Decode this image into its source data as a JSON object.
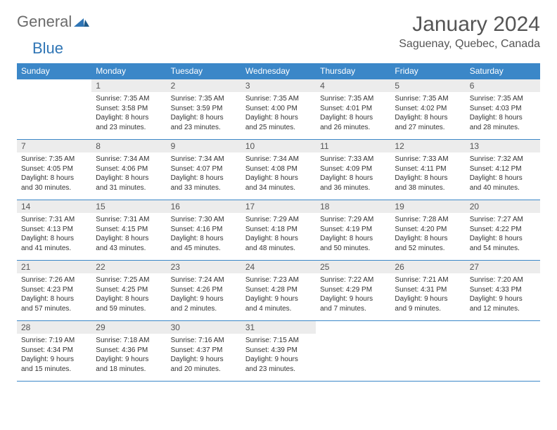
{
  "logo": {
    "part1": "General",
    "part2": "Blue"
  },
  "title": "January 2024",
  "location": "Saguenay, Quebec, Canada",
  "colors": {
    "header_bg": "#3b87c8",
    "header_text": "#ffffff",
    "daynum_bg": "#ececec",
    "border": "#3b87c8",
    "text": "#333333",
    "logo_gray": "#6b6b6b",
    "logo_blue": "#2f75b5"
  },
  "daynames": [
    "Sunday",
    "Monday",
    "Tuesday",
    "Wednesday",
    "Thursday",
    "Friday",
    "Saturday"
  ],
  "weeks": [
    [
      {
        "n": "",
        "sr": "",
        "ss": "",
        "dl": ""
      },
      {
        "n": "1",
        "sr": "Sunrise: 7:35 AM",
        "ss": "Sunset: 3:58 PM",
        "dl": "Daylight: 8 hours and 23 minutes."
      },
      {
        "n": "2",
        "sr": "Sunrise: 7:35 AM",
        "ss": "Sunset: 3:59 PM",
        "dl": "Daylight: 8 hours and 23 minutes."
      },
      {
        "n": "3",
        "sr": "Sunrise: 7:35 AM",
        "ss": "Sunset: 4:00 PM",
        "dl": "Daylight: 8 hours and 25 minutes."
      },
      {
        "n": "4",
        "sr": "Sunrise: 7:35 AM",
        "ss": "Sunset: 4:01 PM",
        "dl": "Daylight: 8 hours and 26 minutes."
      },
      {
        "n": "5",
        "sr": "Sunrise: 7:35 AM",
        "ss": "Sunset: 4:02 PM",
        "dl": "Daylight: 8 hours and 27 minutes."
      },
      {
        "n": "6",
        "sr": "Sunrise: 7:35 AM",
        "ss": "Sunset: 4:03 PM",
        "dl": "Daylight: 8 hours and 28 minutes."
      }
    ],
    [
      {
        "n": "7",
        "sr": "Sunrise: 7:35 AM",
        "ss": "Sunset: 4:05 PM",
        "dl": "Daylight: 8 hours and 30 minutes."
      },
      {
        "n": "8",
        "sr": "Sunrise: 7:34 AM",
        "ss": "Sunset: 4:06 PM",
        "dl": "Daylight: 8 hours and 31 minutes."
      },
      {
        "n": "9",
        "sr": "Sunrise: 7:34 AM",
        "ss": "Sunset: 4:07 PM",
        "dl": "Daylight: 8 hours and 33 minutes."
      },
      {
        "n": "10",
        "sr": "Sunrise: 7:34 AM",
        "ss": "Sunset: 4:08 PM",
        "dl": "Daylight: 8 hours and 34 minutes."
      },
      {
        "n": "11",
        "sr": "Sunrise: 7:33 AM",
        "ss": "Sunset: 4:09 PM",
        "dl": "Daylight: 8 hours and 36 minutes."
      },
      {
        "n": "12",
        "sr": "Sunrise: 7:33 AM",
        "ss": "Sunset: 4:11 PM",
        "dl": "Daylight: 8 hours and 38 minutes."
      },
      {
        "n": "13",
        "sr": "Sunrise: 7:32 AM",
        "ss": "Sunset: 4:12 PM",
        "dl": "Daylight: 8 hours and 40 minutes."
      }
    ],
    [
      {
        "n": "14",
        "sr": "Sunrise: 7:31 AM",
        "ss": "Sunset: 4:13 PM",
        "dl": "Daylight: 8 hours and 41 minutes."
      },
      {
        "n": "15",
        "sr": "Sunrise: 7:31 AM",
        "ss": "Sunset: 4:15 PM",
        "dl": "Daylight: 8 hours and 43 minutes."
      },
      {
        "n": "16",
        "sr": "Sunrise: 7:30 AM",
        "ss": "Sunset: 4:16 PM",
        "dl": "Daylight: 8 hours and 45 minutes."
      },
      {
        "n": "17",
        "sr": "Sunrise: 7:29 AM",
        "ss": "Sunset: 4:18 PM",
        "dl": "Daylight: 8 hours and 48 minutes."
      },
      {
        "n": "18",
        "sr": "Sunrise: 7:29 AM",
        "ss": "Sunset: 4:19 PM",
        "dl": "Daylight: 8 hours and 50 minutes."
      },
      {
        "n": "19",
        "sr": "Sunrise: 7:28 AM",
        "ss": "Sunset: 4:20 PM",
        "dl": "Daylight: 8 hours and 52 minutes."
      },
      {
        "n": "20",
        "sr": "Sunrise: 7:27 AM",
        "ss": "Sunset: 4:22 PM",
        "dl": "Daylight: 8 hours and 54 minutes."
      }
    ],
    [
      {
        "n": "21",
        "sr": "Sunrise: 7:26 AM",
        "ss": "Sunset: 4:23 PM",
        "dl": "Daylight: 8 hours and 57 minutes."
      },
      {
        "n": "22",
        "sr": "Sunrise: 7:25 AM",
        "ss": "Sunset: 4:25 PM",
        "dl": "Daylight: 8 hours and 59 minutes."
      },
      {
        "n": "23",
        "sr": "Sunrise: 7:24 AM",
        "ss": "Sunset: 4:26 PM",
        "dl": "Daylight: 9 hours and 2 minutes."
      },
      {
        "n": "24",
        "sr": "Sunrise: 7:23 AM",
        "ss": "Sunset: 4:28 PM",
        "dl": "Daylight: 9 hours and 4 minutes."
      },
      {
        "n": "25",
        "sr": "Sunrise: 7:22 AM",
        "ss": "Sunset: 4:29 PM",
        "dl": "Daylight: 9 hours and 7 minutes."
      },
      {
        "n": "26",
        "sr": "Sunrise: 7:21 AM",
        "ss": "Sunset: 4:31 PM",
        "dl": "Daylight: 9 hours and 9 minutes."
      },
      {
        "n": "27",
        "sr": "Sunrise: 7:20 AM",
        "ss": "Sunset: 4:33 PM",
        "dl": "Daylight: 9 hours and 12 minutes."
      }
    ],
    [
      {
        "n": "28",
        "sr": "Sunrise: 7:19 AM",
        "ss": "Sunset: 4:34 PM",
        "dl": "Daylight: 9 hours and 15 minutes."
      },
      {
        "n": "29",
        "sr": "Sunrise: 7:18 AM",
        "ss": "Sunset: 4:36 PM",
        "dl": "Daylight: 9 hours and 18 minutes."
      },
      {
        "n": "30",
        "sr": "Sunrise: 7:16 AM",
        "ss": "Sunset: 4:37 PM",
        "dl": "Daylight: 9 hours and 20 minutes."
      },
      {
        "n": "31",
        "sr": "Sunrise: 7:15 AM",
        "ss": "Sunset: 4:39 PM",
        "dl": "Daylight: 9 hours and 23 minutes."
      },
      {
        "n": "",
        "sr": "",
        "ss": "",
        "dl": ""
      },
      {
        "n": "",
        "sr": "",
        "ss": "",
        "dl": ""
      },
      {
        "n": "",
        "sr": "",
        "ss": "",
        "dl": ""
      }
    ]
  ]
}
